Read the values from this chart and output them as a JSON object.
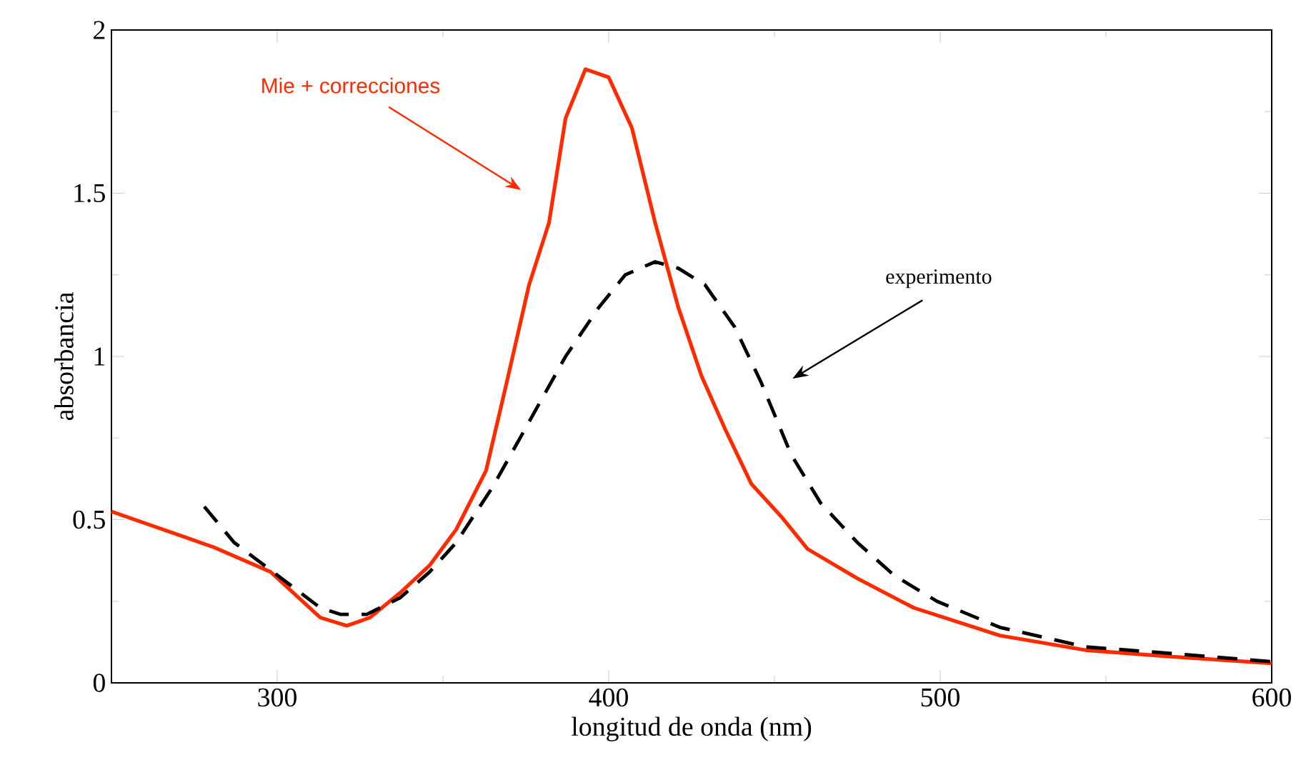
{
  "chart_data": {
    "type": "line",
    "xlabel": "longitud de onda (nm)",
    "ylabel": "absorbancia",
    "xlim": [
      250,
      600
    ],
    "ylim": [
      0,
      2
    ],
    "xticks": [
      300,
      400,
      500,
      600
    ],
    "yticks": [
      0,
      0.5,
      1,
      1.5,
      2
    ],
    "grid": false,
    "marker": "none",
    "series": [
      {
        "color": "#ff2a00",
        "line_style": "solid",
        "x": [
          250,
          281,
          298,
          313,
          321,
          328,
          337,
          346,
          354,
          363,
          369,
          376,
          382,
          387,
          393,
          400,
          407,
          414,
          421,
          428,
          435,
          443,
          452,
          460,
          475,
          492,
          518,
          544,
          570,
          600
        ],
        "values": [
          0.525,
          0.415,
          0.34,
          0.2,
          0.175,
          0.2,
          0.275,
          0.36,
          0.47,
          0.65,
          0.91,
          1.22,
          1.41,
          1.73,
          1.88,
          1.855,
          1.7,
          1.41,
          1.15,
          0.94,
          0.78,
          0.61,
          0.51,
          0.41,
          0.32,
          0.23,
          0.145,
          0.1,
          0.08,
          0.06
        ]
      },
      {
        "color": "#000000",
        "line_style": "dashed",
        "x": [
          278,
          287,
          300,
          313,
          319,
          327,
          337,
          346,
          354,
          365,
          376,
          387,
          397,
          405,
          414,
          421,
          429,
          438,
          446,
          455,
          464,
          475,
          486,
          499,
          518,
          544,
          570,
          600
        ],
        "values": [
          0.54,
          0.43,
          0.33,
          0.23,
          0.21,
          0.21,
          0.26,
          0.34,
          0.43,
          0.6,
          0.8,
          1.0,
          1.15,
          1.25,
          1.29,
          1.27,
          1.22,
          1.09,
          0.92,
          0.7,
          0.55,
          0.43,
          0.33,
          0.25,
          0.17,
          0.11,
          0.09,
          0.065
        ]
      }
    ],
    "annotations": [
      "Mie + correcciones",
      "experimento"
    ]
  }
}
